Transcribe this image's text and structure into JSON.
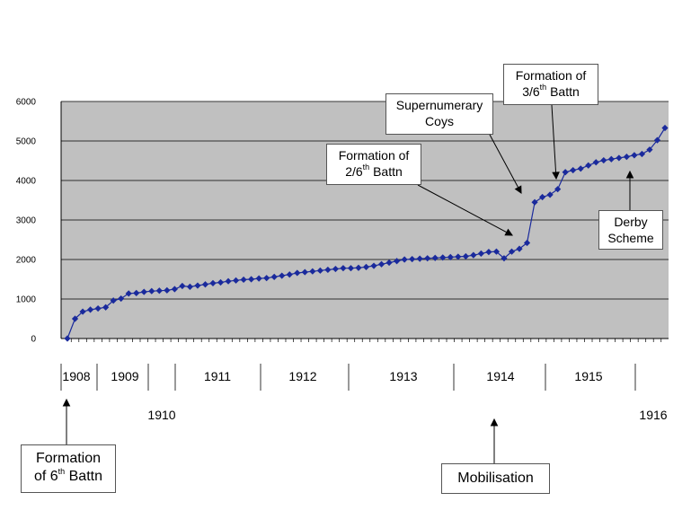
{
  "chart_data": {
    "type": "line",
    "ylim": [
      0,
      6000
    ],
    "yticks": [
      0,
      1000,
      2000,
      3000,
      4000,
      5000,
      6000
    ],
    "grid": true,
    "series_color": "#1a2a9c",
    "plot_background": "#c0c0c0",
    "values": [
      0,
      500,
      680,
      730,
      760,
      790,
      960,
      1010,
      1140,
      1150,
      1180,
      1200,
      1210,
      1220,
      1250,
      1330,
      1310,
      1340,
      1370,
      1400,
      1420,
      1450,
      1470,
      1490,
      1500,
      1520,
      1530,
      1560,
      1590,
      1620,
      1660,
      1680,
      1700,
      1720,
      1740,
      1760,
      1780,
      1780,
      1790,
      1810,
      1840,
      1880,
      1920,
      1960,
      2000,
      2010,
      2020,
      2030,
      2040,
      2050,
      2060,
      2070,
      2080,
      2110,
      2150,
      2190,
      2200,
      2030,
      2200,
      2270,
      2420,
      3450,
      3580,
      3640,
      3780,
      4210,
      4260,
      4300,
      4380,
      4460,
      4510,
      4540,
      4570,
      4600,
      4640,
      4670,
      4780,
      5020,
      5330
    ],
    "years": [
      {
        "label": "1908",
        "row": "top"
      },
      {
        "label": "1909",
        "row": "top"
      },
      {
        "label": "1910",
        "row": "bottom"
      },
      {
        "label": "1911",
        "row": "top"
      },
      {
        "label": "1912",
        "row": "top"
      },
      {
        "label": "1913",
        "row": "top"
      },
      {
        "label": "1914",
        "row": "top"
      },
      {
        "label": "1915",
        "row": "top"
      },
      {
        "label": "1916",
        "row": "bottom"
      }
    ],
    "annotations": {
      "formation_2_6": {
        "line1": "Formation of",
        "line2_num": "2/6",
        "line2_sup": "th",
        "line2_rest": " Battn"
      },
      "supernumerary": {
        "line1": "Supernumerary",
        "line2": "Coys"
      },
      "formation_3_6": {
        "line1": "Formation of",
        "line2_num": "3/6",
        "line2_sup": "th",
        "line2_rest": " Battn"
      },
      "derby": {
        "line1": "Derby",
        "line2": "Scheme"
      },
      "formation_6": {
        "line1": "Formation",
        "line2_pre": "of 6",
        "line2_sup": "th",
        "line2_rest": " Battn"
      },
      "mobilisation": {
        "text": "Mobilisation"
      }
    }
  }
}
